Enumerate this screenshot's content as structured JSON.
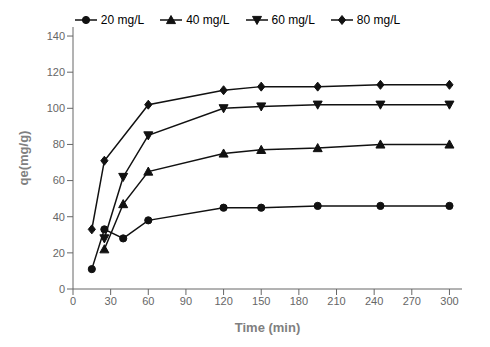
{
  "chart_data": {
    "type": "line",
    "xlabel": "Time (min)",
    "ylabel": "qe(mg/g)",
    "xlim": [
      0,
      310
    ],
    "ylim": [
      0,
      145
    ],
    "xticks": [
      0,
      30,
      60,
      90,
      120,
      150,
      180,
      210,
      240,
      270,
      300
    ],
    "yticks": [
      0,
      20,
      40,
      60,
      80,
      100,
      120,
      140
    ],
    "grid": false,
    "legend": "top",
    "color": "#111111",
    "series": [
      {
        "name": "20 mg/L",
        "x": [
          15,
          25,
          40,
          60,
          120,
          150,
          195,
          245,
          300
        ],
        "values": [
          11,
          33,
          28,
          38,
          45,
          45,
          46,
          46,
          46
        ],
        "marker": "circle"
      },
      {
        "name": "40 mg/L",
        "x": [
          25,
          40,
          60,
          120,
          150,
          195,
          245,
          300
        ],
        "values": [
          22,
          47,
          65,
          75,
          77,
          78,
          80,
          80
        ],
        "marker": "triangle-up"
      },
      {
        "name": "60 mg/L",
        "x": [
          25,
          40,
          60,
          120,
          150,
          195,
          245,
          300
        ],
        "values": [
          28,
          62,
          85,
          100,
          101,
          102,
          102,
          102
        ],
        "marker": "triangle-down"
      },
      {
        "name": "80 mg/L",
        "x": [
          15,
          25,
          60,
          120,
          150,
          195,
          245,
          300
        ],
        "values": [
          33,
          71,
          102,
          110,
          112,
          112,
          113,
          113
        ],
        "marker": "diamond"
      }
    ]
  }
}
